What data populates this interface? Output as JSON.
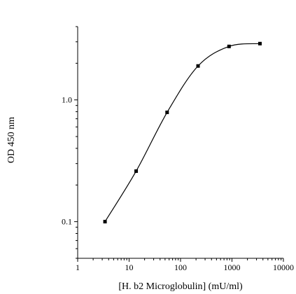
{
  "chart_data": {
    "type": "line",
    "title": "",
    "xlabel": "[H. b2 Microglobulin] (mU/ml)",
    "ylabel": "OD 450 nm",
    "x_scale": "log",
    "y_scale": "log",
    "xlim": [
      1,
      10000
    ],
    "ylim": [
      0.05,
      4
    ],
    "x_ticks": [
      1,
      10,
      100,
      1000,
      10000
    ],
    "x_tick_labels": [
      "1",
      "10",
      "100",
      "1000",
      "10000"
    ],
    "y_ticks": [
      0.1,
      1.0
    ],
    "y_tick_labels": [
      "0.1",
      "1.0"
    ],
    "grid": false,
    "series": [
      {
        "x": [
          3.4,
          13.7,
          54.8,
          219,
          877,
          3500
        ],
        "y": [
          0.1,
          0.26,
          0.79,
          1.9,
          2.75,
          2.9
        ]
      }
    ]
  }
}
